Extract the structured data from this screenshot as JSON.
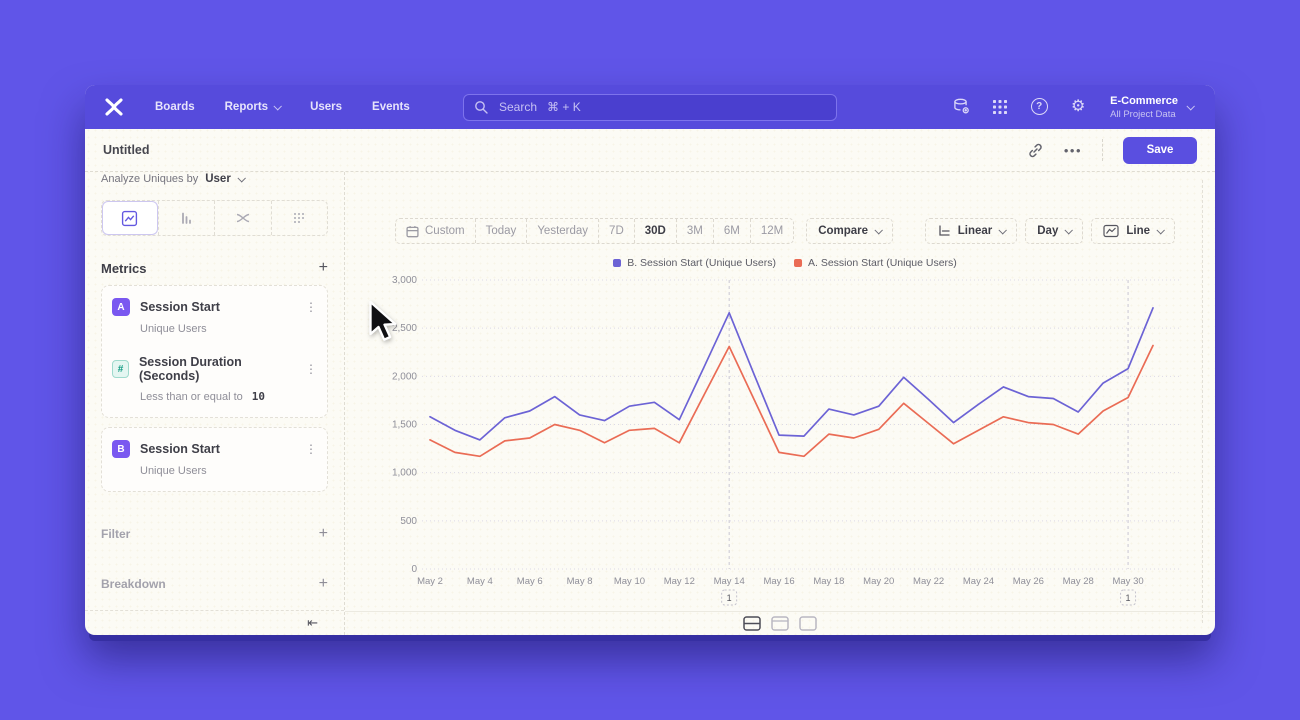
{
  "nav": {
    "items": [
      {
        "label": "Boards",
        "has_chevron": false
      },
      {
        "label": "Reports",
        "has_chevron": true
      },
      {
        "label": "Users",
        "has_chevron": false
      },
      {
        "label": "Events",
        "has_chevron": false
      }
    ],
    "search_placeholder": "Search   ⌘ + K",
    "project_name": "E-Commerce",
    "project_subtitle": "All Project Data",
    "icons": [
      "data-icon",
      "apps-grid-icon",
      "help-icon",
      "settings-icon"
    ]
  },
  "header": {
    "title": "Untitled",
    "more_label": "•••",
    "save_label": "Save",
    "icons": [
      "link-icon",
      "more-options-icon"
    ]
  },
  "sidebar": {
    "analyze_prefix": "Analyze Uniques by",
    "analyze_value": "User",
    "chart_type_tabs": [
      "line-chart-tab",
      "bar-chart-tab",
      "flow-tab",
      "metric-tab"
    ],
    "active_tab": "line-chart-tab",
    "metrics_title": "Metrics",
    "metric_groups": [
      [
        {
          "badge": "A",
          "badge_style": "purple",
          "name": "Session Start",
          "subtitle": "Unique Users",
          "subtitle_value": ""
        },
        {
          "badge": "#",
          "badge_style": "teal",
          "name": "Session Duration (Seconds)",
          "subtitle": "Less than or equal to",
          "subtitle_value": "10"
        }
      ],
      [
        {
          "badge": "B",
          "badge_style": "purple",
          "name": "Session Start",
          "subtitle": "Unique Users",
          "subtitle_value": ""
        }
      ]
    ],
    "filter_label": "Filter",
    "breakdown_label": "Breakdown",
    "collapse_glyph": "⇤"
  },
  "toolbar": {
    "ranges": [
      "Custom",
      "Today",
      "Yesterday",
      "7D",
      "30D",
      "3M",
      "6M",
      "12M"
    ],
    "active_range": "30D",
    "compare_label": "Compare",
    "scale_label": "Linear",
    "interval_label": "Day",
    "style_label": "Line"
  },
  "footer": {
    "view_toggles": [
      "chart-and-table",
      "chart-with-header",
      "chart-only"
    ],
    "active_toggle": "chart-and-table"
  },
  "colors": {
    "background": "#6055e8",
    "navbar": "#564bdc",
    "accent": "#5a4fe0",
    "series_b": "#6c63d5",
    "series_a": "#ea6c55",
    "badge_purple": "#7a58f0",
    "badge_teal": "#139c84"
  },
  "chart_data": {
    "type": "line",
    "title": "",
    "xlabel": "",
    "ylabel": "",
    "x": [
      "May 2",
      "May 3",
      "May 4",
      "May 5",
      "May 6",
      "May 7",
      "May 8",
      "May 9",
      "May 10",
      "May 11",
      "May 12",
      "May 13",
      "May 14",
      "May 15",
      "May 16",
      "May 17",
      "May 18",
      "May 19",
      "May 20",
      "May 21",
      "May 22",
      "May 23",
      "May 24",
      "May 25",
      "May 26",
      "May 27",
      "May 28",
      "May 29",
      "May 30",
      "May 31"
    ],
    "tick_every": 2,
    "ylim": [
      0,
      3000
    ],
    "ytick_step": 500,
    "grid": "horizontal-dotted",
    "legend_position": "top-center",
    "series": [
      {
        "name": "B. Session Start (Unique Users)",
        "color": "#6c63d5",
        "values": [
          1580,
          1440,
          1340,
          1570,
          1640,
          1790,
          1600,
          1540,
          1690,
          1730,
          1550,
          2100,
          2660,
          2020,
          1390,
          1380,
          1660,
          1600,
          1690,
          1990,
          1760,
          1520,
          1710,
          1890,
          1790,
          1770,
          1630,
          1930,
          2080,
          2710
        ]
      },
      {
        "name": "A. Session Start (Unique Users)",
        "color": "#ea6c55",
        "values": [
          1340,
          1210,
          1170,
          1330,
          1360,
          1500,
          1440,
          1310,
          1440,
          1460,
          1310,
          1810,
          2310,
          1760,
          1210,
          1170,
          1400,
          1360,
          1450,
          1720,
          1510,
          1300,
          1440,
          1580,
          1520,
          1500,
          1400,
          1640,
          1780,
          2320
        ]
      }
    ],
    "annotations": [
      {
        "x": "May 14",
        "label": "1"
      },
      {
        "x": "May 30",
        "label": "1"
      }
    ]
  }
}
